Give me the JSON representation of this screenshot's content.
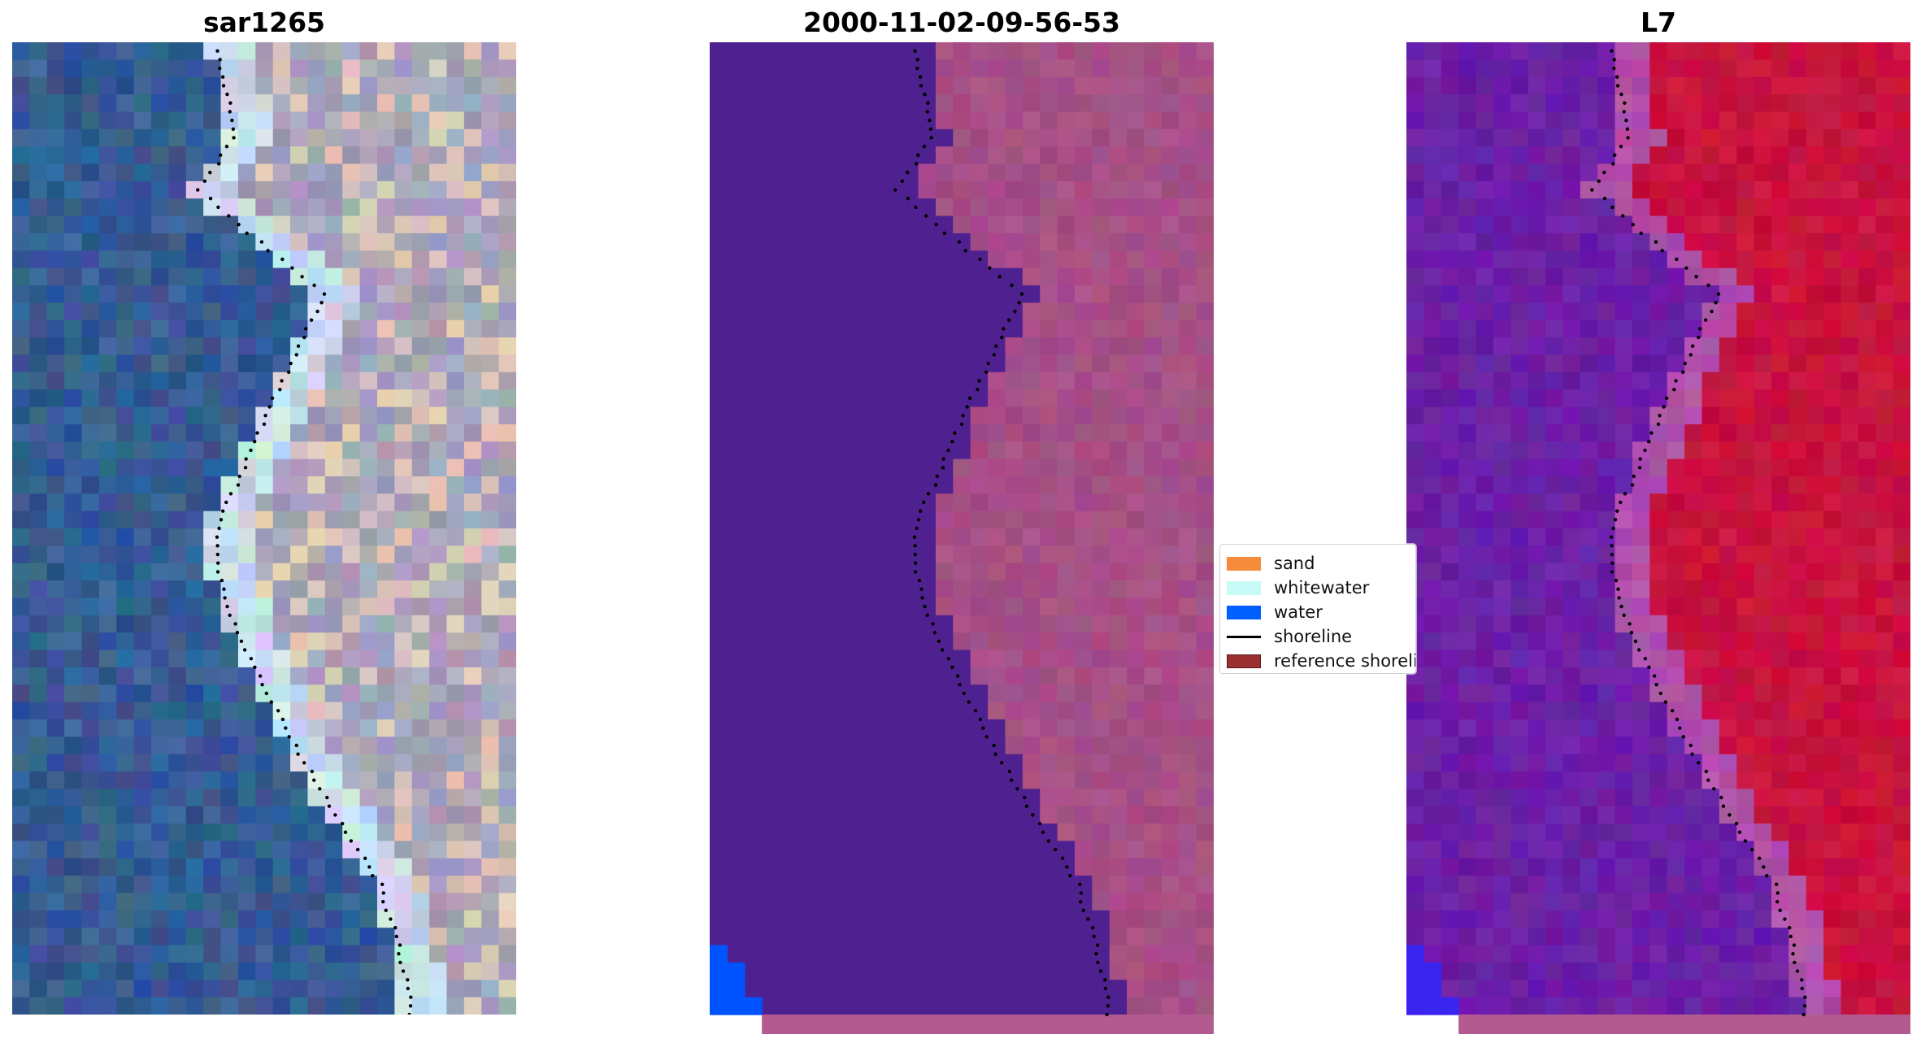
{
  "panels": [
    {
      "title": "sar1265"
    },
    {
      "title": "2000-11-02-09-56-53"
    },
    {
      "title": "L7"
    }
  ],
  "legend": {
    "items": [
      {
        "label": "sand",
        "color": "#f48c3c"
      },
      {
        "label": "whitewater",
        "color": "#c8fbf7"
      },
      {
        "label": "water",
        "color": "#0060ff"
      },
      {
        "label": "shoreline",
        "color": "#000000",
        "kind": "line"
      },
      {
        "label": "reference shoreline",
        "color": "#9b2f32"
      }
    ]
  },
  "colors": {
    "classified_water": "#4f2190",
    "classified_land": "#a64f86",
    "classified_water_blue": "#0054ff",
    "index_water": "#6b1fa6",
    "index_land": "#c8123e",
    "rgb_water": "#355b93",
    "rgb_land": "#a6a2b9",
    "strip": "#b35b91"
  }
}
